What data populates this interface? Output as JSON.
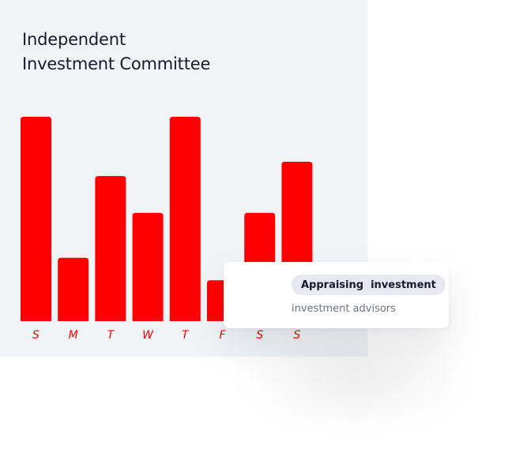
{
  "title": {
    "line1": "Independent",
    "line2": "Investment Committee"
  },
  "card": {
    "pill_word1": "Appraising",
    "pill_word2": "investment",
    "subtext": "investment advisors"
  },
  "colors": {
    "bar": "#ff0000",
    "panel_bg": "#f1f4f7",
    "label": "#ff0000"
  },
  "chart_data": {
    "type": "bar",
    "categories": [
      "S",
      "M",
      "T",
      "W",
      "T",
      "F",
      "S",
      "S"
    ],
    "values": [
      100,
      31,
      71,
      53,
      100,
      20,
      53,
      78
    ],
    "ylim": [
      0,
      100
    ],
    "grid": false,
    "legend": "none",
    "xlabel": "",
    "ylabel": ""
  }
}
